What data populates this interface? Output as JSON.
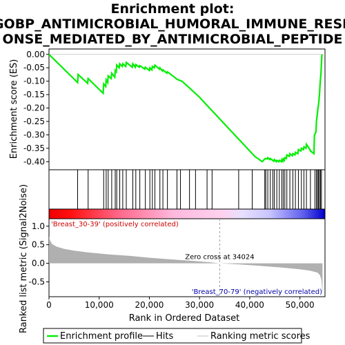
{
  "chart_data": [
    {
      "type": "line",
      "title": "Enrichment plot: GOBP_ANTIMICROBIAL_HUMORAL_IMMUNE_RESPONSE_MEDIATED_BY_ANTIMICROBIAL_PEPTIDE",
      "title_lines": [
        "Enrichment plot:",
        "GOBP_ANTIMICROBIAL_HUMORAL_IMMUNE_RESP",
        "ONSE_MEDIATED_BY_ANTIMICROBIAL_PEPTIDE"
      ],
      "ylabel": "Enrichment score (ES)",
      "ylim": [
        -0.43,
        0.02
      ],
      "yticks": [
        0.0,
        -0.05,
        -0.1,
        -0.15,
        -0.2,
        -0.25,
        -0.3,
        -0.35,
        -0.4
      ],
      "ytick_labels": [
        "0.00",
        "-0.05",
        "-0.10",
        "-0.15",
        "-0.20",
        "-0.25",
        "-0.30",
        "-0.35",
        "-0.40"
      ],
      "xlim": [
        0,
        55000
      ],
      "series": [
        {
          "name": "Enrichment profile",
          "color": "#00ee00",
          "x": [
            0,
            5700,
            5800,
            7700,
            7800,
            10800,
            10900,
            11300,
            11400,
            11700,
            11800,
            12400,
            12500,
            13100,
            13200,
            13400,
            13500,
            14000,
            14100,
            14600,
            14700,
            15300,
            15400,
            16600,
            16700,
            17200,
            17300,
            18000,
            18100,
            19100,
            19200,
            20000,
            20100,
            20500,
            20600,
            21000,
            21100,
            22000,
            22100,
            22600,
            22700,
            23500,
            23600,
            25000,
            25500,
            26500,
            28000,
            30000,
            32000,
            34000,
            36000,
            38000,
            40000,
            41000,
            42500,
            43000,
            43100,
            43500,
            43600,
            44000,
            44100,
            44800,
            44900,
            45300,
            45400,
            45800,
            45900,
            46300,
            46400,
            46600,
            46700,
            46900,
            47000,
            47300,
            47400,
            47900,
            48000,
            48500,
            48600,
            49000,
            49100,
            49600,
            49700,
            50200,
            50300,
            50700,
            50800,
            51200,
            51300,
            52000,
            52100,
            52800,
            52900,
            53200,
            53300,
            53500,
            53600,
            53700,
            53800,
            53900,
            54000,
            54100,
            54200,
            54300,
            54400
          ],
          "y": [
            0.0,
            -0.105,
            -0.075,
            -0.108,
            -0.09,
            -0.145,
            -0.11,
            -0.12,
            -0.095,
            -0.105,
            -0.08,
            -0.09,
            -0.07,
            -0.085,
            -0.06,
            -0.065,
            -0.04,
            -0.05,
            -0.035,
            -0.045,
            -0.035,
            -0.045,
            -0.03,
            -0.048,
            -0.035,
            -0.048,
            -0.038,
            -0.048,
            -0.042,
            -0.055,
            -0.048,
            -0.06,
            -0.05,
            -0.058,
            -0.045,
            -0.05,
            -0.04,
            -0.055,
            -0.05,
            -0.062,
            -0.058,
            -0.07,
            -0.065,
            -0.085,
            -0.093,
            -0.1,
            -0.125,
            -0.16,
            -0.2,
            -0.24,
            -0.28,
            -0.32,
            -0.36,
            -0.38,
            -0.4,
            -0.39,
            -0.388,
            -0.39,
            -0.385,
            -0.392,
            -0.388,
            -0.398,
            -0.392,
            -0.4,
            -0.395,
            -0.4,
            -0.395,
            -0.4,
            -0.392,
            -0.398,
            -0.39,
            -0.395,
            -0.385,
            -0.388,
            -0.375,
            -0.38,
            -0.37,
            -0.378,
            -0.37,
            -0.375,
            -0.365,
            -0.37,
            -0.355,
            -0.36,
            -0.35,
            -0.355,
            -0.345,
            -0.35,
            -0.335,
            -0.355,
            -0.36,
            -0.37,
            -0.3,
            -0.29,
            -0.25,
            -0.22,
            -0.2,
            -0.19,
            -0.17,
            -0.15,
            -0.12,
            -0.09,
            -0.07,
            -0.03,
            0.0
          ]
        }
      ]
    },
    {
      "type": "hits",
      "series_name": "Hits",
      "x": [
        5700,
        7800,
        10900,
        11400,
        11800,
        12500,
        13200,
        13500,
        14100,
        14700,
        15400,
        16700,
        17300,
        18100,
        19200,
        20100,
        20600,
        21100,
        22100,
        22700,
        23600,
        25500,
        26200,
        28000,
        29200,
        31500,
        32500,
        37800,
        40500,
        43000,
        43200,
        43600,
        44100,
        44600,
        44900,
        45400,
        45900,
        46400,
        46700,
        47000,
        47400,
        48000,
        48600,
        49100,
        49700,
        50300,
        50800,
        51300,
        52100,
        53000,
        53300,
        53500,
        53700,
        53900,
        54100,
        54300
      ]
    },
    {
      "type": "heatmap",
      "labels": [
        "'Breast_30-39' (positively correlated)",
        "'Breast_70-79' (negatively correlated)"
      ],
      "colors": {
        "positive": "#ee0000",
        "negative": "#0000cc"
      },
      "xlim": [
        0,
        55000
      ]
    },
    {
      "type": "area",
      "name": "Ranking metric scores",
      "xlabel": "Rank in Ordered Dataset",
      "ylabel": "Ranked list metric (Signal2Noise)",
      "ylim": [
        -0.9,
        1.2
      ],
      "yticks": [
        1.0,
        0.5,
        0.0,
        -0.5
      ],
      "ytick_labels": [
        "1.0",
        "0.5",
        "0.0",
        "-0.5"
      ],
      "xlim": [
        0,
        55000
      ],
      "xticks": [
        0,
        10000,
        20000,
        30000,
        40000,
        50000
      ],
      "xtick_labels": [
        "0",
        "10,000",
        "20,000",
        "30,000",
        "40,000",
        "50,000"
      ],
      "zero_cross": 34024,
      "zero_cross_label": "Zero cross at 34024",
      "x": [
        0,
        200,
        600,
        1500,
        3000,
        5000,
        8000,
        12000,
        16000,
        20000,
        24000,
        28000,
        32000,
        34024,
        38000,
        42000,
        46000,
        50000,
        52000,
        53500,
        54000,
        54300,
        54500
      ],
      "y": [
        0.72,
        0.62,
        0.52,
        0.45,
        0.39,
        0.34,
        0.29,
        0.24,
        0.2,
        0.15,
        0.11,
        0.07,
        0.03,
        0.0,
        -0.03,
        -0.07,
        -0.11,
        -0.16,
        -0.2,
        -0.25,
        -0.32,
        -0.45,
        -0.85
      ],
      "color": "#b0b0b0"
    }
  ],
  "legend": {
    "items": [
      {
        "label": "Enrichment profile",
        "color": "#00ee00"
      },
      {
        "label": "Hits",
        "color": "#000000"
      },
      {
        "label": "Ranking metric scores",
        "color": "#c0c0c0"
      }
    ]
  }
}
